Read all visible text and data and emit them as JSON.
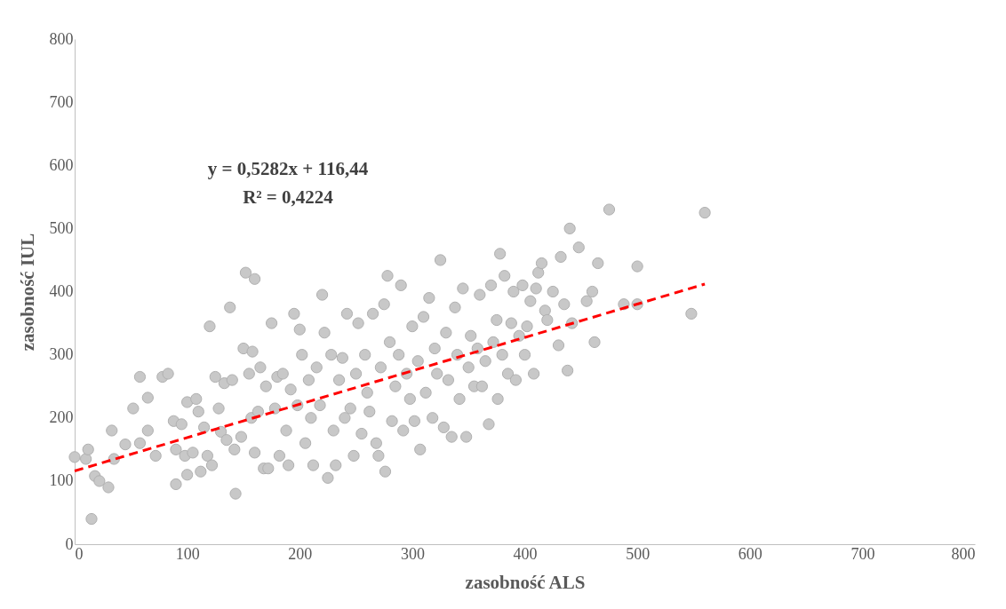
{
  "chart_data": {
    "type": "scatter",
    "xlabel": "zasobność ALS",
    "ylabel": "zasobność IUL",
    "annotations": [
      "y = 0,5282x + 116,44",
      "R² = 0,4224"
    ],
    "xlim": [
      0,
      800
    ],
    "xticks": [
      0,
      100,
      200,
      300,
      400,
      500,
      600,
      700,
      800
    ],
    "ylim": [
      0,
      800
    ],
    "yticks": [
      0,
      100,
      200,
      300,
      400,
      500,
      600,
      700,
      800
    ],
    "grid": false,
    "marker": "circle",
    "series": [
      {
        "color": "#c8c8c8",
        "x": [
          0,
          10,
          12,
          18,
          22,
          15,
          30,
          33,
          35,
          45,
          52,
          58,
          58,
          65,
          65,
          72,
          78,
          83,
          88,
          90,
          90,
          95,
          98,
          100,
          100,
          105,
          108,
          110,
          112,
          115,
          118,
          120,
          122,
          125,
          128,
          130,
          133,
          135,
          138,
          140,
          142,
          143,
          148,
          150,
          152,
          155,
          157,
          158,
          160,
          160,
          163,
          165,
          168,
          170,
          172,
          175,
          178,
          180,
          182,
          185,
          188,
          190,
          192,
          195,
          198,
          200,
          202,
          205,
          208,
          210,
          212,
          215,
          218,
          220,
          222,
          225,
          228,
          230,
          232,
          235,
          238,
          240,
          242,
          245,
          248,
          250,
          252,
          255,
          258,
          260,
          262,
          265,
          268,
          270,
          272,
          275,
          276,
          278,
          280,
          282,
          285,
          288,
          290,
          292,
          295,
          298,
          300,
          302,
          305,
          307,
          310,
          312,
          315,
          318,
          320,
          322,
          325,
          328,
          330,
          332,
          335,
          338,
          340,
          342,
          345,
          348,
          350,
          352,
          355,
          358,
          360,
          362,
          365,
          368,
          370,
          372,
          375,
          376,
          378,
          380,
          382,
          385,
          388,
          390,
          392,
          395,
          398,
          400,
          402,
          405,
          408,
          410,
          412,
          415,
          418,
          420,
          425,
          430,
          432,
          435,
          438,
          440,
          442,
          448,
          455,
          460,
          462,
          465,
          475,
          488,
          500,
          500,
          548,
          560
        ],
        "values": [
          138,
          135,
          150,
          108,
          100,
          40,
          90,
          180,
          135,
          158,
          215,
          160,
          265,
          232,
          180,
          140,
          265,
          270,
          195,
          150,
          95,
          190,
          140,
          110,
          225,
          145,
          230,
          210,
          115,
          185,
          140,
          345,
          125,
          265,
          215,
          178,
          255,
          165,
          375,
          260,
          150,
          80,
          170,
          310,
          430,
          270,
          200,
          305,
          420,
          145,
          210,
          280,
          120,
          250,
          120,
          350,
          215,
          265,
          140,
          270,
          180,
          125,
          245,
          365,
          220,
          340,
          300,
          160,
          260,
          200,
          125,
          280,
          220,
          395,
          335,
          105,
          300,
          180,
          125,
          260,
          295,
          200,
          365,
          215,
          140,
          270,
          350,
          175,
          300,
          240,
          210,
          365,
          160,
          140,
          280,
          380,
          115,
          425,
          320,
          195,
          250,
          300,
          410,
          180,
          270,
          230,
          345,
          195,
          290,
          150,
          360,
          240,
          390,
          200,
          310,
          270,
          450,
          185,
          335,
          260,
          170,
          375,
          300,
          230,
          405,
          170,
          280,
          330,
          250,
          310,
          395,
          250,
          290,
          190,
          410,
          320,
          355,
          230,
          460,
          300,
          425,
          270,
          350,
          400,
          260,
          330,
          410,
          300,
          345,
          385,
          270,
          405,
          430,
          445,
          370,
          355,
          400,
          315,
          455,
          380,
          275,
          500,
          350,
          470,
          385,
          400,
          320,
          445,
          530,
          380,
          440,
          380,
          365,
          525
        ]
      },
      {
        "type": "line",
        "color": "#ff0000",
        "line_style": "dashed",
        "marker": "none",
        "x": [
          0,
          560
        ],
        "values": [
          116,
          412
        ]
      }
    ]
  }
}
